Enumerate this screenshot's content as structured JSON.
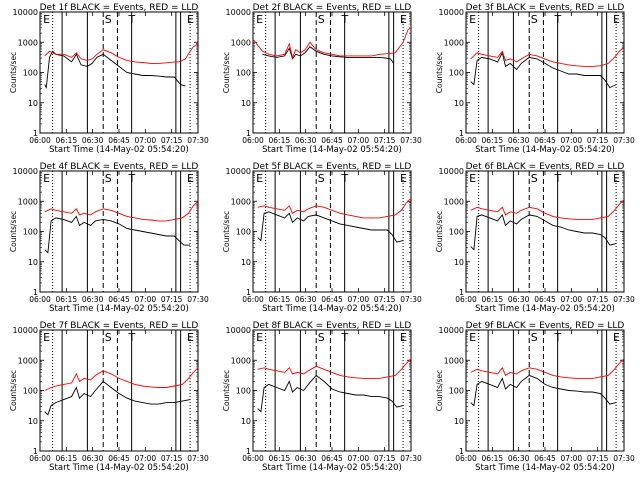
{
  "common": {
    "xlabel": "Start Time (14-May-02 05:54:20)",
    "ylabel": "Counts/sec",
    "x_tick_labels": [
      "06:00",
      "06:15",
      "06:30",
      "06:45",
      "07:00",
      "07:15",
      "07:30"
    ],
    "y_tick_labels": [
      "1",
      "10",
      "100",
      "1000",
      "10000"
    ],
    "colors": {
      "events": "#000000",
      "lld": "#ff0000"
    }
  },
  "chart_data": [
    {
      "type": "line",
      "title": "Det 1f BLACK = Events, RED = LLD",
      "letters": [
        "E",
        "S",
        "T",
        "E"
      ],
      "xlim": [
        0,
        100
      ],
      "ylim_log10": [
        0,
        4
      ],
      "series": [
        {
          "name": "Events",
          "color": "#000000",
          "x": [
            3,
            4,
            6,
            8,
            10,
            15,
            20,
            23,
            26,
            30,
            33,
            36,
            40,
            45,
            50,
            55,
            60,
            65,
            70,
            75,
            80,
            85,
            89,
            92
          ],
          "log10": [
            1.6,
            1.5,
            2.5,
            2.7,
            2.6,
            2.55,
            2.35,
            2.6,
            2.25,
            2.2,
            2.3,
            2.5,
            2.6,
            2.4,
            2.2,
            2.0,
            1.95,
            1.9,
            1.9,
            1.88,
            1.85,
            1.85,
            1.6,
            1.55
          ]
        },
        {
          "name": "LLD",
          "color": "#ff0000",
          "x": [
            3,
            6,
            10,
            15,
            20,
            23,
            26,
            30,
            33,
            36,
            40,
            45,
            50,
            55,
            60,
            65,
            70,
            75,
            80,
            85,
            88,
            92,
            95,
            97,
            100
          ],
          "log10": [
            2.55,
            2.7,
            2.6,
            2.6,
            2.5,
            2.65,
            2.45,
            2.4,
            2.45,
            2.6,
            2.75,
            2.65,
            2.5,
            2.4,
            2.35,
            2.33,
            2.3,
            2.3,
            2.32,
            2.35,
            2.35,
            2.45,
            2.7,
            2.85,
            2.95
          ]
        }
      ]
    },
    {
      "type": "line",
      "title": "Det 2f BLACK = Events, RED = LLD",
      "letters": [
        "E",
        "S",
        "T",
        "E"
      ],
      "xlim": [
        0,
        100
      ],
      "ylim_log10": [
        0,
        4
      ],
      "series": [
        {
          "name": "Events",
          "color": "#000000",
          "x": [
            6,
            10,
            15,
            20,
            23,
            25,
            27,
            30,
            33,
            36,
            40,
            45,
            50,
            55,
            60,
            65,
            70,
            75,
            80,
            84,
            87,
            89
          ],
          "log10": [
            2.6,
            2.55,
            2.5,
            2.55,
            2.8,
            2.45,
            2.6,
            2.55,
            2.65,
            2.85,
            2.7,
            2.6,
            2.55,
            2.52,
            2.5,
            2.5,
            2.5,
            2.5,
            2.5,
            2.48,
            2.45,
            2.3
          ]
        },
        {
          "name": "LLD",
          "color": "#ff0000",
          "x": [
            0,
            3,
            6,
            10,
            15,
            20,
            23,
            25,
            27,
            30,
            33,
            36,
            40,
            45,
            50,
            55,
            60,
            65,
            70,
            75,
            80,
            85,
            90,
            95,
            98,
            100
          ],
          "log10": [
            3.1,
            2.9,
            2.7,
            2.6,
            2.55,
            2.6,
            2.95,
            2.5,
            2.75,
            2.65,
            2.75,
            3.0,
            2.75,
            2.65,
            2.6,
            2.55,
            2.55,
            2.55,
            2.55,
            2.55,
            2.6,
            2.62,
            2.65,
            3.0,
            3.4,
            3.5
          ]
        }
      ]
    },
    {
      "type": "line",
      "title": "Det 3f BLACK = Events, RED = LLD",
      "letters": [
        "E",
        "S",
        "T",
        "E"
      ],
      "xlim": [
        0,
        100
      ],
      "ylim_log10": [
        0,
        4
      ],
      "series": [
        {
          "name": "Events",
          "color": "#000000",
          "x": [
            3,
            5,
            7,
            10,
            15,
            20,
            23,
            25,
            28,
            32,
            35,
            40,
            45,
            50,
            55,
            60,
            65,
            70,
            75,
            80,
            85,
            88,
            91,
            95
          ],
          "log10": [
            1.7,
            1.6,
            2.4,
            2.5,
            2.45,
            2.35,
            2.65,
            2.2,
            2.3,
            2.1,
            2.3,
            2.5,
            2.45,
            2.3,
            2.15,
            2.05,
            1.95,
            1.95,
            1.9,
            1.9,
            1.9,
            1.75,
            1.5,
            1.6
          ]
        },
        {
          "name": "LLD",
          "color": "#ff0000",
          "x": [
            3,
            7,
            10,
            15,
            20,
            23,
            25,
            28,
            32,
            35,
            40,
            45,
            50,
            55,
            60,
            65,
            70,
            75,
            80,
            85,
            90,
            94,
            97,
            100
          ],
          "log10": [
            2.45,
            2.65,
            2.6,
            2.55,
            2.5,
            2.7,
            2.4,
            2.45,
            2.35,
            2.45,
            2.6,
            2.55,
            2.45,
            2.35,
            2.3,
            2.25,
            2.22,
            2.2,
            2.2,
            2.22,
            2.3,
            2.5,
            2.7,
            2.85
          ]
        }
      ]
    },
    {
      "type": "line",
      "title": "Det 4f BLACK = Events, RED = LLD",
      "letters": [
        "E",
        "S",
        "T",
        "E"
      ],
      "xlim": [
        0,
        100
      ],
      "ylim_log10": [
        0,
        4
      ],
      "series": [
        {
          "name": "Events",
          "color": "#000000",
          "x": [
            3,
            5,
            7,
            10,
            15,
            20,
            23,
            25,
            28,
            32,
            35,
            40,
            45,
            50,
            55,
            60,
            65,
            70,
            75,
            80,
            85,
            88,
            91,
            95
          ],
          "log10": [
            1.4,
            1.3,
            2.35,
            2.45,
            2.4,
            2.3,
            2.5,
            2.2,
            2.3,
            2.2,
            2.35,
            2.4,
            2.35,
            2.25,
            2.1,
            2.05,
            2.0,
            1.95,
            1.9,
            1.85,
            1.85,
            1.7,
            1.55,
            1.55
          ]
        },
        {
          "name": "LLD",
          "color": "#ff0000",
          "x": [
            3,
            7,
            10,
            15,
            20,
            23,
            25,
            28,
            32,
            35,
            40,
            45,
            50,
            55,
            60,
            65,
            70,
            75,
            80,
            85,
            90,
            94,
            97,
            100
          ],
          "log10": [
            2.65,
            2.75,
            2.7,
            2.65,
            2.6,
            2.75,
            2.55,
            2.6,
            2.55,
            2.65,
            2.75,
            2.7,
            2.6,
            2.5,
            2.45,
            2.4,
            2.38,
            2.35,
            2.35,
            2.4,
            2.45,
            2.6,
            2.85,
            3.0
          ]
        }
      ]
    },
    {
      "type": "line",
      "title": "Det 5f BLACK = Events, RED = LLD",
      "letters": [
        "E",
        "S",
        "T",
        "E"
      ],
      "xlim": [
        0,
        100
      ],
      "ylim_log10": [
        0,
        4
      ],
      "series": [
        {
          "name": "Events",
          "color": "#000000",
          "x": [
            3,
            5,
            7,
            10,
            15,
            20,
            23,
            25,
            28,
            32,
            35,
            40,
            45,
            50,
            55,
            60,
            65,
            70,
            75,
            80,
            85,
            88,
            91,
            95
          ],
          "log10": [
            1.8,
            1.7,
            2.6,
            2.65,
            2.55,
            2.45,
            2.6,
            2.3,
            2.45,
            2.35,
            2.5,
            2.55,
            2.45,
            2.35,
            2.25,
            2.2,
            2.15,
            2.1,
            2.05,
            2.05,
            2.05,
            1.9,
            1.65,
            1.7
          ]
        },
        {
          "name": "LLD",
          "color": "#ff0000",
          "x": [
            3,
            7,
            10,
            15,
            20,
            23,
            25,
            28,
            32,
            35,
            40,
            45,
            50,
            55,
            60,
            65,
            70,
            75,
            80,
            85,
            90,
            94,
            97,
            100
          ],
          "log10": [
            2.8,
            2.85,
            2.8,
            2.75,
            2.7,
            2.85,
            2.6,
            2.7,
            2.65,
            2.75,
            2.85,
            2.8,
            2.7,
            2.6,
            2.55,
            2.5,
            2.45,
            2.45,
            2.45,
            2.5,
            2.55,
            2.7,
            2.95,
            3.1
          ]
        }
      ]
    },
    {
      "type": "line",
      "title": "Det 6f BLACK = Events, RED = LLD",
      "letters": [
        "E",
        "S",
        "T",
        "E"
      ],
      "xlim": [
        0,
        100
      ],
      "ylim_log10": [
        0,
        4
      ],
      "series": [
        {
          "name": "Events",
          "color": "#000000",
          "x": [
            3,
            5,
            7,
            10,
            15,
            20,
            23,
            25,
            28,
            32,
            35,
            40,
            45,
            50,
            55,
            60,
            65,
            70,
            75,
            80,
            85,
            88,
            91,
            95
          ],
          "log10": [
            1.5,
            1.4,
            2.5,
            2.55,
            2.45,
            2.35,
            2.55,
            2.2,
            2.35,
            2.25,
            2.4,
            2.55,
            2.5,
            2.35,
            2.2,
            2.15,
            2.05,
            2.0,
            1.95,
            1.95,
            1.9,
            1.8,
            1.55,
            1.6
          ]
        },
        {
          "name": "LLD",
          "color": "#ff0000",
          "x": [
            3,
            7,
            10,
            15,
            20,
            23,
            25,
            28,
            32,
            35,
            40,
            45,
            50,
            55,
            60,
            65,
            70,
            75,
            80,
            85,
            90,
            94,
            97,
            100
          ],
          "log10": [
            2.7,
            2.8,
            2.75,
            2.7,
            2.65,
            2.8,
            2.55,
            2.65,
            2.6,
            2.7,
            2.8,
            2.75,
            2.6,
            2.5,
            2.45,
            2.42,
            2.4,
            2.4,
            2.4,
            2.45,
            2.5,
            2.7,
            2.9,
            3.05
          ]
        }
      ]
    },
    {
      "type": "line",
      "title": "Det 7f BLACK = Events, RED = LLD",
      "letters": [
        "E",
        "S",
        "T",
        "E"
      ],
      "xlim": [
        0,
        100
      ],
      "ylim_log10": [
        0,
        4
      ],
      "series": [
        {
          "name": "Events",
          "color": "#000000",
          "x": [
            3,
            5,
            7,
            10,
            15,
            20,
            23,
            25,
            28,
            32,
            35,
            40,
            45,
            50,
            55,
            60,
            65,
            70,
            75,
            80,
            85,
            90,
            95
          ],
          "log10": [
            1.3,
            1.2,
            1.5,
            1.6,
            1.7,
            1.8,
            2.1,
            1.75,
            1.9,
            1.8,
            2.0,
            2.3,
            2.1,
            1.9,
            1.75,
            1.65,
            1.6,
            1.55,
            1.55,
            1.6,
            1.6,
            1.65,
            1.7
          ]
        },
        {
          "name": "LLD",
          "color": "#ff0000",
          "x": [
            3,
            7,
            10,
            15,
            20,
            23,
            25,
            28,
            32,
            35,
            40,
            45,
            50,
            55,
            60,
            65,
            70,
            75,
            80,
            85,
            90,
            94,
            97,
            100
          ],
          "log10": [
            2.0,
            2.1,
            2.15,
            2.2,
            2.25,
            2.55,
            2.3,
            2.4,
            2.35,
            2.5,
            2.65,
            2.55,
            2.4,
            2.3,
            2.2,
            2.15,
            2.12,
            2.1,
            2.1,
            2.15,
            2.2,
            2.4,
            2.6,
            2.75
          ]
        }
      ]
    },
    {
      "type": "line",
      "title": "Det 8f BLACK = Events, RED = LLD",
      "letters": [
        "E",
        "S",
        "T",
        "E"
      ],
      "xlim": [
        0,
        100
      ],
      "ylim_log10": [
        0,
        4
      ],
      "series": [
        {
          "name": "Events",
          "color": "#000000",
          "x": [
            3,
            5,
            7,
            10,
            15,
            20,
            23,
            25,
            28,
            32,
            35,
            40,
            45,
            50,
            55,
            60,
            65,
            70,
            75,
            80,
            85,
            88,
            91,
            95
          ],
          "log10": [
            1.4,
            1.3,
            2.1,
            2.2,
            2.1,
            2.0,
            2.3,
            1.95,
            2.1,
            2.0,
            2.2,
            2.5,
            2.3,
            2.05,
            1.95,
            1.9,
            1.85,
            1.85,
            1.8,
            1.8,
            1.75,
            1.65,
            1.45,
            1.5
          ]
        },
        {
          "name": "LLD",
          "color": "#ff0000",
          "x": [
            3,
            7,
            10,
            15,
            20,
            23,
            25,
            28,
            32,
            35,
            40,
            45,
            50,
            55,
            60,
            65,
            70,
            75,
            80,
            85,
            90,
            94,
            97,
            100
          ],
          "log10": [
            2.7,
            2.75,
            2.7,
            2.65,
            2.6,
            2.75,
            2.55,
            2.6,
            2.55,
            2.65,
            2.8,
            2.7,
            2.6,
            2.5,
            2.45,
            2.42,
            2.4,
            2.4,
            2.4,
            2.45,
            2.5,
            2.7,
            2.9,
            3.05
          ]
        }
      ]
    },
    {
      "type": "line",
      "title": "Det 9f BLACK = Events, RED = LLD",
      "letters": [
        "E",
        "S",
        "T",
        "E"
      ],
      "xlim": [
        0,
        100
      ],
      "ylim_log10": [
        0,
        4
      ],
      "series": [
        {
          "name": "Events",
          "color": "#000000",
          "x": [
            3,
            5,
            7,
            10,
            15,
            20,
            23,
            25,
            28,
            32,
            35,
            40,
            45,
            50,
            55,
            60,
            65,
            70,
            75,
            80,
            85,
            88,
            91,
            95
          ],
          "log10": [
            1.6,
            1.5,
            2.2,
            2.3,
            2.2,
            2.1,
            2.4,
            2.05,
            2.2,
            2.1,
            2.3,
            2.5,
            2.4,
            2.2,
            2.1,
            2.05,
            2.0,
            1.98,
            1.95,
            1.95,
            1.9,
            1.75,
            1.55,
            1.6
          ]
        },
        {
          "name": "LLD",
          "color": "#ff0000",
          "x": [
            3,
            7,
            10,
            15,
            20,
            23,
            25,
            28,
            32,
            35,
            40,
            45,
            50,
            55,
            60,
            65,
            70,
            75,
            80,
            85,
            90,
            94,
            97,
            100
          ],
          "log10": [
            2.6,
            2.7,
            2.65,
            2.6,
            2.55,
            2.75,
            2.5,
            2.6,
            2.55,
            2.65,
            2.75,
            2.7,
            2.6,
            2.5,
            2.45,
            2.42,
            2.4,
            2.4,
            2.4,
            2.45,
            2.5,
            2.7,
            2.9,
            3.05
          ]
        }
      ]
    }
  ]
}
